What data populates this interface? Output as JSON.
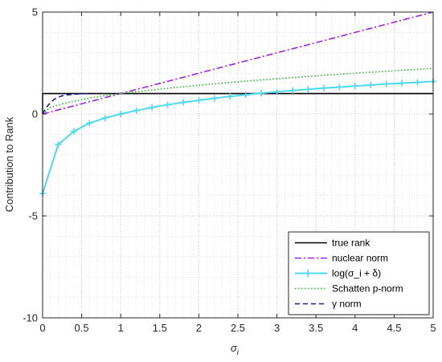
{
  "chart_data": {
    "type": "line",
    "xlabel": "σ_i",
    "ylabel": "Contribution to Rank",
    "xlim": [
      0,
      5
    ],
    "ylim": [
      -10,
      5
    ],
    "x_ticks": [
      "0",
      "0.5",
      "1",
      "1.5",
      "2",
      "2.5",
      "3",
      "3.5",
      "4",
      "4.5",
      "5"
    ],
    "y_ticks": [
      "-10",
      "-5",
      "0",
      "5"
    ],
    "grid": "major and minor, dotted",
    "legend_position": "bottom-right",
    "series": [
      {
        "name": "true rank",
        "color": "#000000",
        "style": "solid",
        "x": [
          0,
          0.0001,
          5
        ],
        "y": [
          0,
          1,
          1
        ]
      },
      {
        "name": "nuclear norm",
        "color": "#a020f0",
        "style": "dash-dot",
        "x": [
          0,
          5
        ],
        "y": [
          0,
          5
        ]
      },
      {
        "name": "log(σ_i + δ)",
        "color": "#4dd9f0",
        "style": "solid-plus",
        "x": [
          0,
          0.2,
          0.4,
          0.6,
          0.8,
          1.0,
          1.2,
          1.4,
          1.6,
          1.8,
          2.0,
          2.2,
          2.4,
          2.6,
          2.8,
          3.0,
          3.2,
          3.4,
          3.6,
          3.8,
          4.0,
          4.2,
          4.4,
          4.6,
          4.8,
          5.0
        ],
        "y": [
          -3.9,
          -1.5,
          -0.85,
          -0.45,
          -0.2,
          0.0,
          0.17,
          0.32,
          0.45,
          0.57,
          0.67,
          0.77,
          0.86,
          0.94,
          1.02,
          1.09,
          1.15,
          1.21,
          1.27,
          1.32,
          1.37,
          1.42,
          1.47,
          1.51,
          1.55,
          1.6
        ]
      },
      {
        "name": "Schatten p-norm",
        "color": "#22bb22",
        "style": "dotted",
        "x": [
          0,
          0.1,
          0.25,
          0.5,
          0.75,
          1.0,
          1.5,
          2.0,
          2.5,
          3.0,
          3.5,
          4.0,
          4.5,
          5.0
        ],
        "y": [
          0,
          0.32,
          0.5,
          0.71,
          0.87,
          1.0,
          1.22,
          1.41,
          1.58,
          1.73,
          1.87,
          2.0,
          2.12,
          2.24
        ]
      },
      {
        "name": "γ norm",
        "color": "#1a1aa0",
        "style": "dashed",
        "x": [
          0,
          0.05,
          0.1,
          0.15,
          0.2,
          0.25,
          0.3,
          0.4,
          0.5,
          0.6
        ],
        "y": [
          0,
          0.33,
          0.56,
          0.72,
          0.82,
          0.89,
          0.93,
          0.97,
          0.99,
          1.0
        ]
      }
    ]
  }
}
